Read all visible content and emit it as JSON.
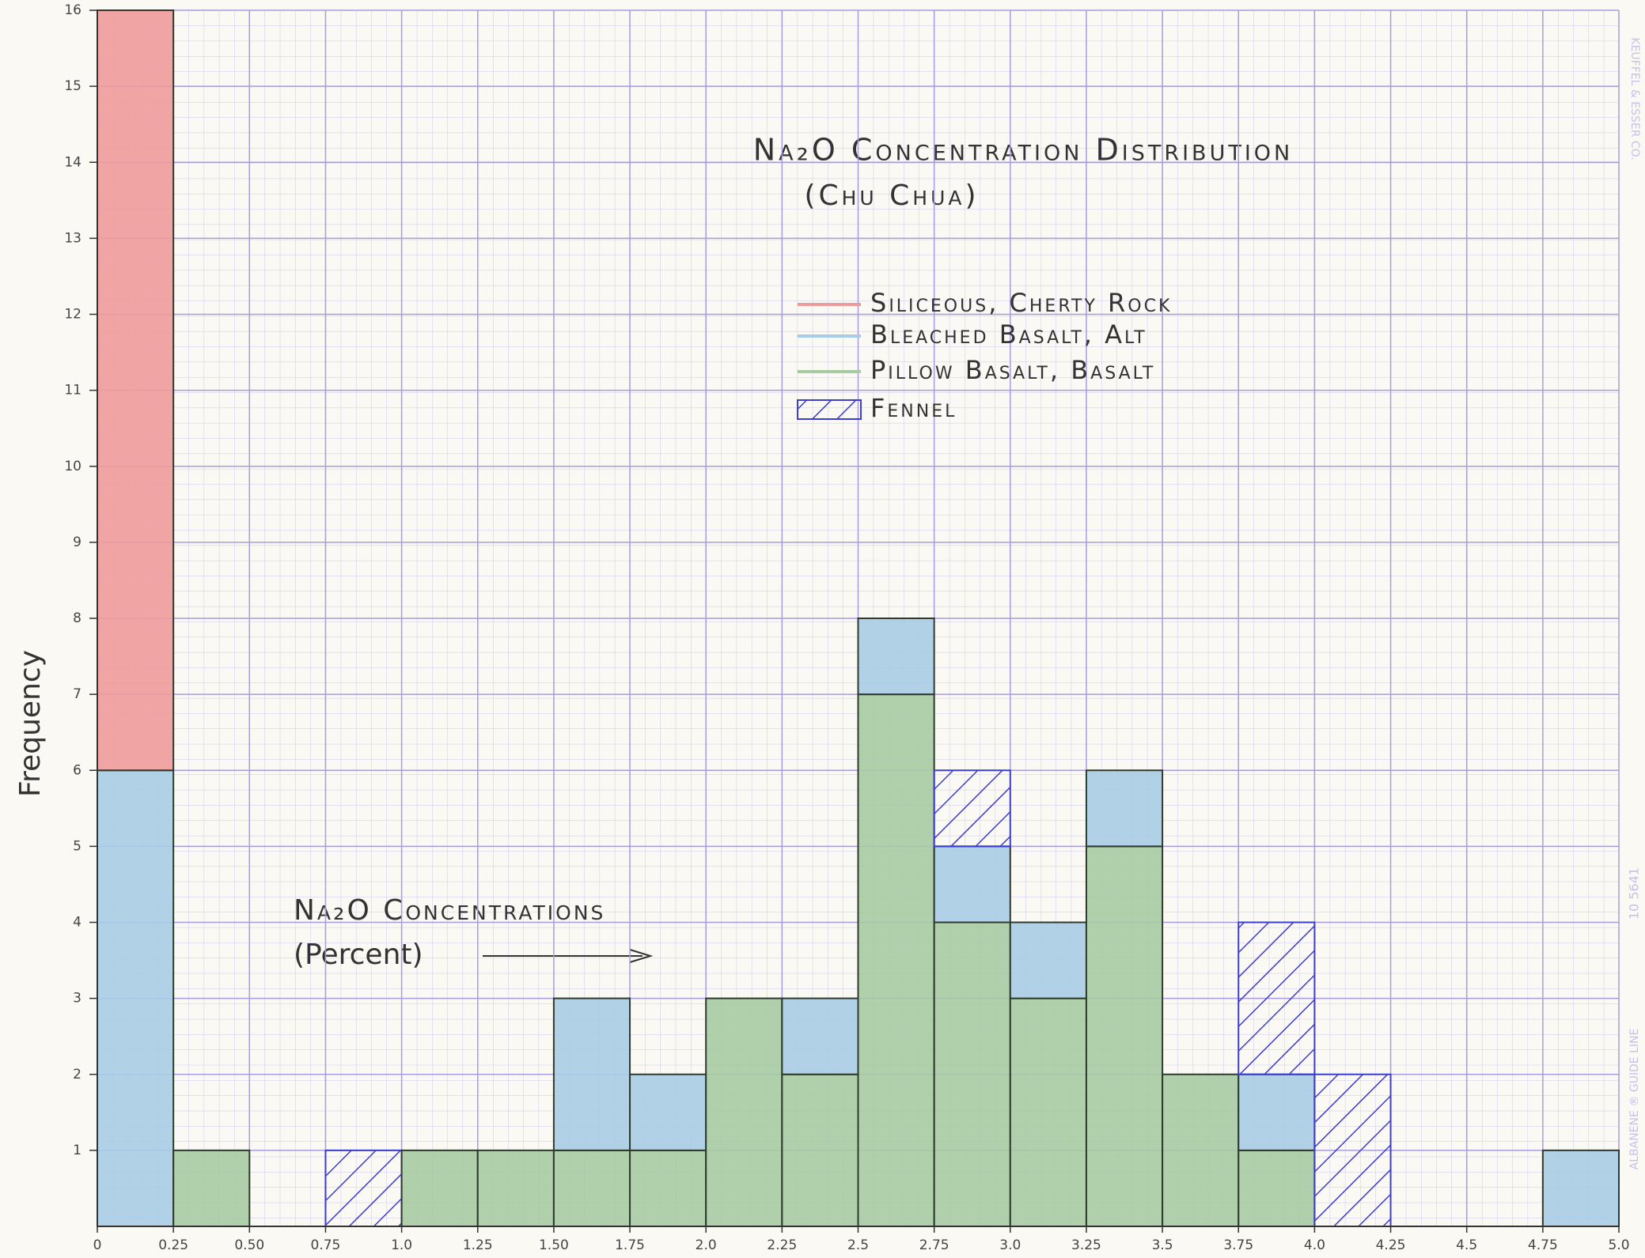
{
  "chart_data": {
    "type": "histogram",
    "title": "Na₂O Concentration Distribution",
    "subtitle": "(Chu Chua)",
    "y_label": "Frequency",
    "annotation": [
      "Na₂O Concentrations",
      "(Percent)"
    ],
    "bins": [
      0,
      0.25,
      0.5,
      0.75,
      1,
      1.25,
      1.5,
      1.75,
      2,
      2.25,
      2.5,
      2.75,
      3,
      3.25,
      3.5,
      3.75,
      4,
      4.25,
      4.5,
      4.75,
      5
    ],
    "series": [
      {
        "name": "Pillow Basalt, Basalt",
        "color": "#a6cba2",
        "values": [
          0,
          1,
          0,
          0,
          1,
          1,
          1,
          1,
          3,
          2,
          7,
          4,
          3,
          5,
          2,
          1,
          0,
          0,
          0,
          0
        ]
      },
      {
        "name": "Bleached Basalt, Alt",
        "color": "#a8cce6",
        "values": [
          6,
          0,
          0,
          0,
          0,
          0,
          2,
          1,
          0,
          1,
          1,
          1,
          1,
          1,
          0,
          1,
          0,
          0,
          0,
          1
        ]
      },
      {
        "name": "Siliceous, Cherty Rock",
        "color": "#ee9b9b",
        "values": [
          10,
          0,
          0,
          0,
          0,
          0,
          0,
          0,
          0,
          0,
          0,
          0,
          0,
          0,
          0,
          0,
          0,
          0,
          0,
          0
        ]
      },
      {
        "name": "Fennel",
        "color": "#3d3dcf",
        "hatch": true,
        "values": [
          0,
          0,
          0,
          1,
          0,
          0,
          0,
          0,
          0,
          0,
          0,
          1,
          0,
          0,
          0,
          2,
          2,
          0,
          0,
          0
        ]
      }
    ],
    "xlim": [
      0,
      5
    ],
    "xticks": [
      0,
      0.25,
      {
        "value": 0.5,
        "label": "0.50"
      },
      0.75,
      {
        "value": 1,
        "label": "1.0"
      },
      1.25,
      {
        "value": 1.5,
        "label": "1.50"
      },
      1.75,
      {
        "value": 2,
        "label": "2.0"
      },
      2.25,
      2.5,
      2.75,
      {
        "value": 3,
        "label": "3.0"
      },
      3.25,
      3.5,
      3.75,
      {
        "value": 4,
        "label": "4.0"
      },
      4.25,
      4.5,
      4.75,
      {
        "value": 5,
        "label": "5.0"
      }
    ],
    "ylim": [
      0,
      16
    ],
    "yticks": [
      1,
      2,
      3,
      4,
      5,
      6,
      7,
      8,
      9,
      10,
      11,
      12,
      13,
      14,
      15,
      16
    ],
    "grid": true
  },
  "paper_labels": [
    "KEUFFEL & ESSER CO.",
    "ALBANENE ® GUIDE LINE",
    "10 5641"
  ]
}
